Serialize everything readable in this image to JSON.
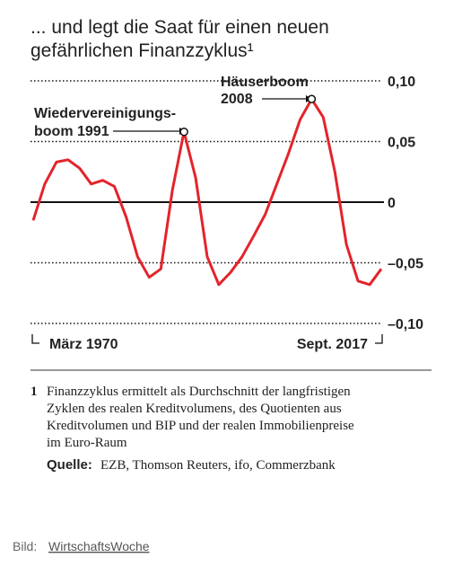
{
  "chart_data": {
    "type": "line",
    "title": [
      "... und legt die Saat für einen neuen",
      "gefährlichen Finanzzyklus¹"
    ],
    "categories": [
      "März 1970",
      null,
      null,
      null,
      null,
      null,
      null,
      null,
      null,
      null,
      null,
      null,
      null,
      null,
      null,
      null,
      null,
      null,
      null,
      null,
      null,
      null,
      null,
      null,
      null,
      null,
      null,
      null,
      null,
      null,
      "Sept. 2017"
    ],
    "values": [
      -0.015,
      0.015,
      0.033,
      0.035,
      0.028,
      0.015,
      0.018,
      0.013,
      -0.012,
      -0.045,
      -0.062,
      -0.055,
      0.01,
      0.058,
      0.02,
      -0.045,
      -0.068,
      -0.058,
      -0.045,
      -0.028,
      -0.01,
      0.015,
      0.04,
      0.068,
      0.085,
      0.07,
      0.025,
      -0.035,
      -0.065,
      -0.068,
      -0.055
    ],
    "color": "#e3242b",
    "ylim": [
      -0.1,
      0.1
    ],
    "yticks": [
      {
        "value": 0.1,
        "label": "0,10"
      },
      {
        "value": 0.05,
        "label": "0,05"
      },
      0,
      {
        "value": -0.05,
        "label": "–0,05"
      },
      {
        "value": -0.1,
        "label": "–0,10"
      }
    ],
    "annotations": [
      [
        "Wiedervereinigungs-",
        "boom 1991"
      ],
      [
        "Häuserboom",
        "2008"
      ]
    ],
    "footnote_number": "1",
    "footnote": [
      "Finanzzyklus ermittelt als Durchschnitt der langfristigen",
      "Zyklen des realen Kreditvolumens, des Quotienten aus",
      "Kreditvolumen und BIP und der realen Immobilienpreise",
      "im Euro-Raum"
    ],
    "source_label": "Quelle:",
    "source": "EZB, Thomson Reuters, ifo, Commerzbank"
  },
  "caption": {
    "label": "Bild:",
    "link": "WirtschaftsWoche"
  }
}
